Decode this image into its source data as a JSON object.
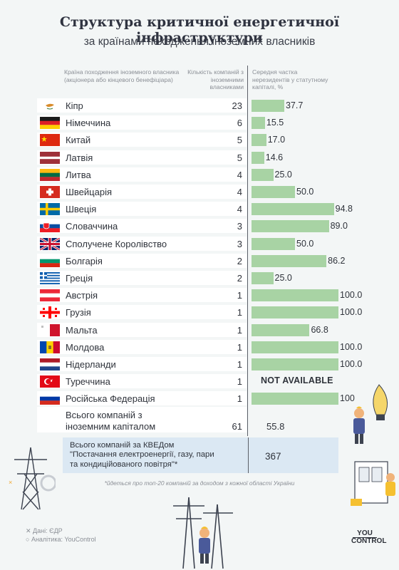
{
  "title": "Структура критичної енергетичної інфраструктури",
  "subtitle": "за країнами походження іноземних власників",
  "headers": {
    "country": "Країна походження іноземного власника (акціонера або кінцевого бенефіціара)",
    "count": "Кількість компаній з іноземними власниками",
    "share": "Середня частка нерезидентів у статутному капіталі, %"
  },
  "chart_data": {
    "type": "bar",
    "orientation": "horizontal",
    "xlim": [
      0,
      100
    ],
    "rows": [
      {
        "country": "Кіпр",
        "flag": "cyprus-flag",
        "count": "23",
        "share": 37.7,
        "label": "37.7"
      },
      {
        "country": "Німеччина",
        "flag": "germany-flag",
        "count": "6",
        "share": 15.5,
        "label": "15.5"
      },
      {
        "country": "Китай",
        "flag": "china-flag",
        "count": "5",
        "share": 17.0,
        "label": "17.0"
      },
      {
        "country": "Латвія",
        "flag": "latvia-flag",
        "count": "5",
        "share": 14.6,
        "label": "14.6"
      },
      {
        "country": "Литва",
        "flag": "lithuania-flag",
        "count": "4",
        "share": 25.0,
        "label": "25.0"
      },
      {
        "country": "Швейцарія",
        "flag": "switzerland-flag",
        "count": "4",
        "share": 50.0,
        "label": "50.0"
      },
      {
        "country": "Швеція",
        "flag": "sweden-flag",
        "count": "4",
        "share": 94.8,
        "label": "94.8"
      },
      {
        "country": "Словаччина",
        "flag": "slovakia-flag",
        "count": "3",
        "share": 89.0,
        "label": "89.0"
      },
      {
        "country": "Сполучене Королівство",
        "flag": "uk-flag",
        "count": "3",
        "share": 50.0,
        "label": "50.0"
      },
      {
        "country": "Болгарія",
        "flag": "bulgaria-flag",
        "count": "2",
        "share": 86.2,
        "label": "86.2"
      },
      {
        "country": "Греція",
        "flag": "greece-flag",
        "count": "2",
        "share": 25.0,
        "label": "25.0"
      },
      {
        "country": "Австрія",
        "flag": "austria-flag",
        "count": "1",
        "share": 100.0,
        "label": "100.0"
      },
      {
        "country": "Грузія",
        "flag": "georgia-flag",
        "count": "1",
        "share": 100.0,
        "label": "100.0"
      },
      {
        "country": "Мальта",
        "flag": "malta-flag",
        "count": "1",
        "share": 66.8,
        "label": "66.8"
      },
      {
        "country": "Молдова",
        "flag": "moldova-flag",
        "count": "1",
        "share": 100.0,
        "label": "100.0"
      },
      {
        "country": "Нідерланди",
        "flag": "netherlands-flag",
        "count": "1",
        "share": 100.0,
        "label": "100.0"
      },
      {
        "country": "Туреччина",
        "flag": "turkey-flag",
        "count": "1",
        "share": null,
        "label": "NOT AVAILABLE"
      },
      {
        "country": "Російська Федерація",
        "flag": "russia-flag",
        "count": "1",
        "share": 100,
        "label": "100"
      }
    ],
    "bar_color": "#a8d3a4"
  },
  "total": {
    "label_line1": "Всього компаній з",
    "label_line2": "іноземним капіталом",
    "count": "61",
    "share": "55.8"
  },
  "kved": {
    "line1": "Всього компаній за КВЕДом",
    "line2": "\"Постачання електроенергії, газу, пари",
    "line3": "та кондиційованого повітря\"*",
    "value": "367"
  },
  "footnote": "*йдеться про топ-20 компаній за доходом з кожної області України",
  "source": {
    "data": "Дані: ЄДР",
    "analytics": "Аналітика: YouControl"
  },
  "logo": {
    "line1": "YOU",
    "line2": "CONTROL"
  }
}
